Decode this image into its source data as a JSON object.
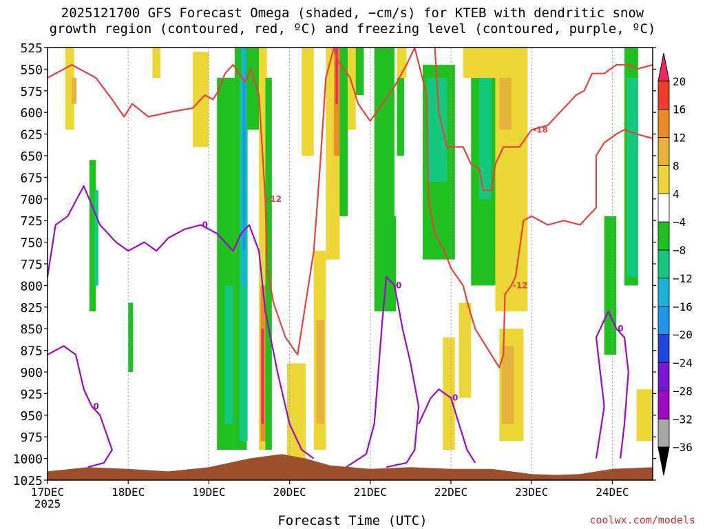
{
  "title": {
    "line1": "2025121700 GFS Forecast Omega (shaded, −cm/s) for KTEB with dendritic snow",
    "line2": "growth region (contoured, red, ºC) and freezing level (contoured, purple, ºC)"
  },
  "xlabel": "Forecast Time (UTC)",
  "credit": "coolwx.com/models",
  "chart_data": {
    "type": "heatmap",
    "title": "2025121700 GFS Forecast Omega (shaded, −cm/s) for KTEB with dendritic snow growth region (contoured, red, ºC) and freezing level (contoured, purple, ºC)",
    "xlabel": "Forecast Time (UTC)",
    "ylabel": "",
    "x_ticks": [
      "17DEC",
      "18DEC",
      "19DEC",
      "20DEC",
      "21DEC",
      "22DEC",
      "23DEC",
      "24DEC"
    ],
    "x_tick_sublabel": "2025",
    "xlim_days": [
      0,
      7.5
    ],
    "y_ticks": [
      525,
      550,
      575,
      600,
      625,
      650,
      675,
      700,
      725,
      750,
      775,
      800,
      825,
      850,
      875,
      900,
      925,
      950,
      975,
      1000,
      1025
    ],
    "ylim": [
      1025,
      525
    ],
    "colorbar": {
      "labels": [
        "20",
        "16",
        "12",
        "8",
        "4",
        "−4",
        "−8",
        "−12",
        "−16",
        "−20",
        "−24",
        "−28",
        "−32",
        "−36"
      ],
      "colors": [
        "#f0285a",
        "#f03c28",
        "#ec8a28",
        "#e6b43c",
        "#ecd737",
        "#ffffff",
        "#20c020",
        "#14c880",
        "#16b4d2",
        "#1e96f0",
        "#1e46dc",
        "#7818d2",
        "#a008c8",
        "#a8a8a8",
        "#000000"
      ]
    },
    "omega_cells": [
      {
        "t0": 0.22,
        "t1": 0.33,
        "p0": 525,
        "p1": 620,
        "v": 4
      },
      {
        "t0": 0.3,
        "t1": 0.36,
        "p0": 560,
        "p1": 590,
        "v": 8
      },
      {
        "t0": 0.52,
        "t1": 0.6,
        "p0": 655,
        "p1": 830,
        "v": -8
      },
      {
        "t0": 0.58,
        "t1": 0.63,
        "p0": 690,
        "p1": 800,
        "v": -12
      },
      {
        "t0": 1.0,
        "t1": 1.06,
        "p0": 820,
        "p1": 900,
        "v": -8
      },
      {
        "t0": 1.3,
        "t1": 1.4,
        "p0": 525,
        "p1": 560,
        "v": 4
      },
      {
        "t0": 1.8,
        "t1": 2.0,
        "p0": 530,
        "p1": 640,
        "v": 4
      },
      {
        "t0": 2.1,
        "t1": 2.32,
        "p0": 560,
        "p1": 990,
        "v": -8
      },
      {
        "t0": 2.2,
        "t1": 2.3,
        "p0": 800,
        "p1": 960,
        "v": -12
      },
      {
        "t0": 2.32,
        "t1": 2.47,
        "p0": 525,
        "p1": 990,
        "v": -8
      },
      {
        "t0": 2.38,
        "t1": 2.48,
        "p0": 560,
        "p1": 980,
        "v": -12
      },
      {
        "t0": 2.4,
        "t1": 2.46,
        "p0": 525,
        "p1": 800,
        "v": -16
      },
      {
        "t0": 2.42,
        "t1": 2.45,
        "p0": 560,
        "p1": 760,
        "v": -20
      },
      {
        "t0": 2.47,
        "t1": 2.62,
        "p0": 525,
        "p1": 620,
        "v": -8
      },
      {
        "t0": 2.62,
        "t1": 2.72,
        "p0": 525,
        "p1": 990,
        "v": 4
      },
      {
        "t0": 2.64,
        "t1": 2.7,
        "p0": 800,
        "p1": 980,
        "v": 12
      },
      {
        "t0": 2.65,
        "t1": 2.68,
        "p0": 850,
        "p1": 960,
        "v": 20
      },
      {
        "t0": 2.7,
        "t1": 2.78,
        "p0": 560,
        "p1": 990,
        "v": -8
      },
      {
        "t0": 2.97,
        "t1": 3.2,
        "p0": 890,
        "p1": 1000,
        "v": 4
      },
      {
        "t0": 3.15,
        "t1": 3.3,
        "p0": 525,
        "p1": 650,
        "v": 4
      },
      {
        "t0": 3.3,
        "t1": 3.45,
        "p0": 760,
        "p1": 990,
        "v": 4
      },
      {
        "t0": 3.33,
        "t1": 3.43,
        "p0": 840,
        "p1": 960,
        "v": 8
      },
      {
        "t0": 3.45,
        "t1": 3.62,
        "p0": 525,
        "p1": 770,
        "v": 4
      },
      {
        "t0": 3.55,
        "t1": 3.62,
        "p0": 525,
        "p1": 650,
        "v": 12
      },
      {
        "t0": 3.57,
        "t1": 3.6,
        "p0": 525,
        "p1": 590,
        "v": 20
      },
      {
        "t0": 3.62,
        "t1": 3.72,
        "p0": 525,
        "p1": 720,
        "v": -8
      },
      {
        "t0": 3.72,
        "t1": 3.82,
        "p0": 525,
        "p1": 620,
        "v": 4
      },
      {
        "t0": 3.82,
        "t1": 3.92,
        "p0": 525,
        "p1": 580,
        "v": -8
      },
      {
        "t0": 4.05,
        "t1": 4.3,
        "p0": 525,
        "p1": 830,
        "v": -8
      },
      {
        "t0": 4.22,
        "t1": 4.32,
        "p0": 720,
        "p1": 830,
        "v": -8
      },
      {
        "t0": 4.33,
        "t1": 4.45,
        "p0": 525,
        "p1": 560,
        "v": 4
      },
      {
        "t0": 4.33,
        "t1": 4.42,
        "p0": 560,
        "p1": 650,
        "v": -8
      },
      {
        "t0": 4.65,
        "t1": 5.05,
        "p0": 545,
        "p1": 770,
        "v": -8
      },
      {
        "t0": 4.7,
        "t1": 4.95,
        "p0": 560,
        "p1": 680,
        "v": -12
      },
      {
        "t0": 4.9,
        "t1": 5.05,
        "p0": 860,
        "p1": 990,
        "v": 4
      },
      {
        "t0": 5.1,
        "t1": 5.25,
        "p0": 820,
        "p1": 930,
        "v": 4
      },
      {
        "t0": 5.25,
        "t1": 5.55,
        "p0": 560,
        "p1": 800,
        "v": -8
      },
      {
        "t0": 5.35,
        "t1": 5.5,
        "p0": 560,
        "p1": 700,
        "v": -12
      },
      {
        "t0": 5.15,
        "t1": 5.6,
        "p0": 525,
        "p1": 560,
        "v": 4
      },
      {
        "t0": 5.55,
        "t1": 5.95,
        "p0": 525,
        "p1": 830,
        "v": 4
      },
      {
        "t0": 5.6,
        "t1": 5.75,
        "p0": 560,
        "p1": 620,
        "v": 8
      },
      {
        "t0": 5.6,
        "t1": 5.9,
        "p0": 850,
        "p1": 980,
        "v": 4
      },
      {
        "t0": 5.63,
        "t1": 5.78,
        "p0": 870,
        "p1": 960,
        "v": 8
      },
      {
        "t0": 6.9,
        "t1": 7.05,
        "p0": 720,
        "p1": 880,
        "v": -8
      },
      {
        "t0": 7.15,
        "t1": 7.32,
        "p0": 525,
        "p1": 800,
        "v": -8
      },
      {
        "t0": 7.18,
        "t1": 7.32,
        "p0": 560,
        "p1": 790,
        "v": -12
      },
      {
        "t0": 7.3,
        "t1": 7.5,
        "p0": 920,
        "p1": 980,
        "v": 4
      }
    ],
    "series": [
      {
        "color": "#e8403a",
        "contour_label": "-12",
        "points": [
          [
            0,
            560
          ],
          [
            0.3,
            545
          ],
          [
            0.6,
            560
          ],
          [
            0.8,
            585
          ],
          [
            0.95,
            605
          ],
          [
            1.05,
            590
          ],
          [
            1.25,
            605
          ],
          [
            1.5,
            600
          ],
          [
            1.8,
            595
          ],
          [
            1.95,
            580
          ],
          [
            2.05,
            585
          ],
          [
            2.12,
            575
          ],
          [
            2.2,
            555
          ],
          [
            2.3,
            545
          ],
          [
            2.45,
            565
          ],
          [
            2.52,
            550
          ],
          [
            2.62,
            580
          ],
          [
            2.7,
            700
          ],
          [
            2.72,
            780
          ],
          [
            2.8,
            820
          ],
          [
            2.95,
            860
          ],
          [
            3.1,
            880
          ],
          [
            3.3,
            760
          ],
          [
            3.38,
            660
          ],
          [
            3.45,
            560
          ],
          [
            3.55,
            525
          ],
          [
            3.6,
            540
          ],
          [
            3.75,
            560
          ],
          [
            3.85,
            590
          ],
          [
            4.0,
            610
          ],
          [
            4.15,
            590
          ],
          [
            4.3,
            570
          ],
          [
            4.45,
            545
          ],
          [
            4.55,
            525
          ]
        ]
      },
      {
        "color": "#e8403a",
        "contour_label": "-12",
        "points": [
          [
            4.55,
            525
          ],
          [
            4.7,
            580
          ],
          [
            4.72,
            700
          ],
          [
            4.8,
            740
          ],
          [
            4.92,
            760
          ],
          [
            5.0,
            780
          ],
          [
            5.15,
            800
          ],
          [
            5.22,
            825
          ],
          [
            5.3,
            850
          ],
          [
            5.5,
            880
          ],
          [
            5.6,
            895
          ],
          [
            5.65,
            880
          ],
          [
            5.67,
            810
          ],
          [
            5.75,
            800
          ],
          [
            5.8,
            790
          ],
          [
            5.9,
            725
          ],
          [
            6.0,
            720
          ],
          [
            6.2,
            730
          ],
          [
            6.4,
            725
          ],
          [
            6.6,
            730
          ],
          [
            6.8,
            710
          ],
          [
            6.8,
            650
          ],
          [
            6.9,
            635
          ],
          [
            7.05,
            625
          ],
          [
            7.15,
            620
          ],
          [
            7.3,
            625
          ],
          [
            7.5,
            630
          ]
        ]
      },
      {
        "color": "#e8403a",
        "contour_label": "-18",
        "points": [
          [
            4.8,
            525
          ],
          [
            4.85,
            600
          ],
          [
            4.95,
            640
          ],
          [
            5.15,
            640
          ],
          [
            5.25,
            660
          ],
          [
            5.35,
            665
          ],
          [
            5.4,
            690
          ],
          [
            5.5,
            690
          ],
          [
            5.55,
            660
          ],
          [
            5.65,
            640
          ],
          [
            5.85,
            640
          ],
          [
            6.0,
            620
          ],
          [
            6.2,
            615
          ],
          [
            6.35,
            600
          ],
          [
            6.55,
            580
          ],
          [
            6.65,
            575
          ],
          [
            6.75,
            555
          ],
          [
            6.9,
            555
          ],
          [
            7.05,
            545
          ],
          [
            7.2,
            545
          ],
          [
            7.3,
            550
          ],
          [
            7.5,
            545
          ]
        ]
      },
      {
        "color": "#9a0ac8",
        "contour_label": "0",
        "points": [
          [
            0,
            790
          ],
          [
            0.1,
            730
          ],
          [
            0.25,
            720
          ],
          [
            0.45,
            685
          ],
          [
            0.65,
            730
          ],
          [
            0.85,
            750
          ],
          [
            1.0,
            760
          ],
          [
            1.2,
            750
          ],
          [
            1.35,
            760
          ],
          [
            1.5,
            745
          ],
          [
            1.7,
            735
          ],
          [
            1.9,
            730
          ],
          [
            2.1,
            740
          ],
          [
            2.3,
            760
          ],
          [
            2.4,
            740
          ],
          [
            2.5,
            730
          ],
          [
            2.62,
            760
          ],
          [
            2.7,
            830
          ],
          [
            2.85,
            900
          ],
          [
            3.0,
            960
          ],
          [
            3.15,
            990
          ],
          [
            3.3,
            1000
          ]
        ]
      },
      {
        "color": "#9a0ac8",
        "contour_label": "0",
        "points": [
          [
            0,
            880
          ],
          [
            0.2,
            870
          ],
          [
            0.35,
            880
          ],
          [
            0.4,
            900
          ],
          [
            0.45,
            920
          ],
          [
            0.55,
            940
          ],
          [
            0.65,
            950
          ],
          [
            0.8,
            990
          ],
          [
            0.7,
            1005
          ],
          [
            0.5,
            1010
          ]
        ]
      },
      {
        "color": "#9a0ac8",
        "contour_label": "0",
        "points": [
          [
            3.7,
            1010
          ],
          [
            3.95,
            995
          ],
          [
            4.05,
            960
          ],
          [
            4.1,
            900
          ],
          [
            4.15,
            840
          ],
          [
            4.2,
            790
          ],
          [
            4.3,
            800
          ],
          [
            4.4,
            850
          ],
          [
            4.5,
            890
          ],
          [
            4.6,
            940
          ],
          [
            4.55,
            990
          ],
          [
            4.45,
            1005
          ],
          [
            4.2,
            1010
          ]
        ]
      },
      {
        "color": "#9a0ac8",
        "contour_label": "0",
        "points": [
          [
            4.6,
            960
          ],
          [
            4.75,
            930
          ],
          [
            4.85,
            920
          ],
          [
            5.0,
            930
          ],
          [
            5.1,
            960
          ],
          [
            5.2,
            990
          ],
          [
            5.3,
            1005
          ]
        ]
      },
      {
        "color": "#9a0ac8",
        "contour_label": "0",
        "points": [
          [
            6.8,
            1000
          ],
          [
            6.9,
            940
          ],
          [
            6.85,
            900
          ],
          [
            6.8,
            860
          ],
          [
            6.95,
            830
          ],
          [
            7.05,
            850
          ],
          [
            7.15,
            860
          ],
          [
            7.2,
            900
          ],
          [
            7.15,
            960
          ],
          [
            7.1,
            1000
          ]
        ]
      }
    ],
    "terrain_pressure": [
      [
        0,
        1015
      ],
      [
        0.5,
        1010
      ],
      [
        1.0,
        1012
      ],
      [
        1.5,
        1015
      ],
      [
        2.0,
        1010
      ],
      [
        2.5,
        1000
      ],
      [
        2.9,
        995
      ],
      [
        3.2,
        1000
      ],
      [
        3.5,
        1008
      ],
      [
        4.0,
        1012
      ],
      [
        4.5,
        1010
      ],
      [
        5.0,
        1012
      ],
      [
        5.5,
        1012
      ],
      [
        6.0,
        1018
      ],
      [
        6.3,
        1019
      ],
      [
        6.6,
        1018
      ],
      [
        7.0,
        1012
      ],
      [
        7.5,
        1010
      ]
    ]
  }
}
